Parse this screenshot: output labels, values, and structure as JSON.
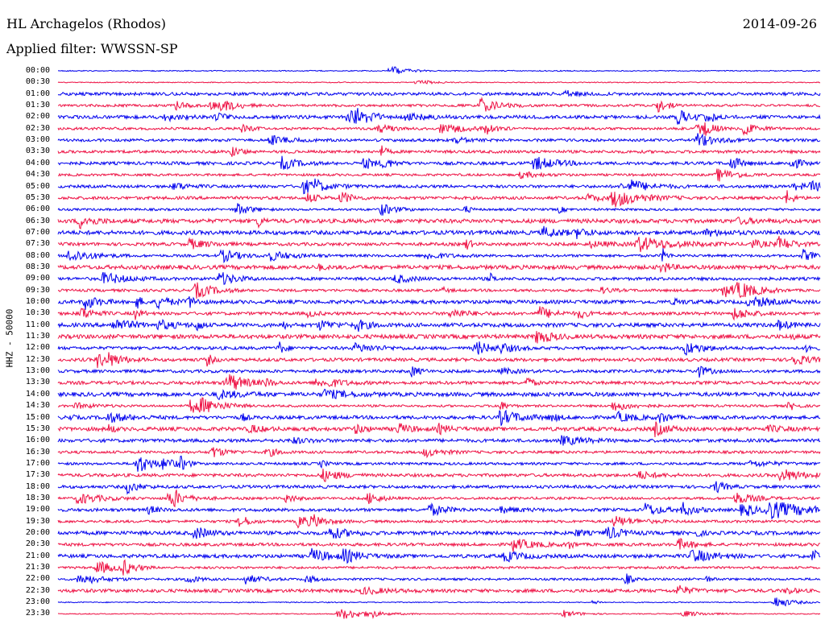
{
  "header": {
    "station": "HL Archagelos (Rhodos)",
    "date": "2014-09-26",
    "filter_label": "Applied filter:",
    "filter_value": "WWSSN-SP"
  },
  "channel_label": "HHZ - 50000",
  "colors": {
    "trace_a": "#0000ee",
    "trace_b": "#ee1144",
    "background": "#ffffff"
  },
  "chart_data": {
    "type": "line",
    "plot_style": "helicorder",
    "row_interval_minutes": 30,
    "rows": [
      "00:00",
      "00:30",
      "01:00",
      "01:30",
      "02:00",
      "02:30",
      "03:00",
      "03:30",
      "04:00",
      "04:30",
      "05:00",
      "05:30",
      "06:00",
      "06:30",
      "07:00",
      "07:30",
      "08:00",
      "08:30",
      "09:00",
      "09:30",
      "10:00",
      "10:30",
      "11:00",
      "11:30",
      "12:00",
      "12:30",
      "13:00",
      "13:30",
      "14:00",
      "14:30",
      "15:00",
      "15:30",
      "16:00",
      "16:30",
      "17:00",
      "17:30",
      "18:00",
      "18:30",
      "19:00",
      "19:30",
      "20:00",
      "20:30",
      "21:00",
      "21:30",
      "22:00",
      "22:30",
      "23:00",
      "23:30"
    ],
    "row_colors": [
      "trace_a",
      "trace_b"
    ]
  }
}
